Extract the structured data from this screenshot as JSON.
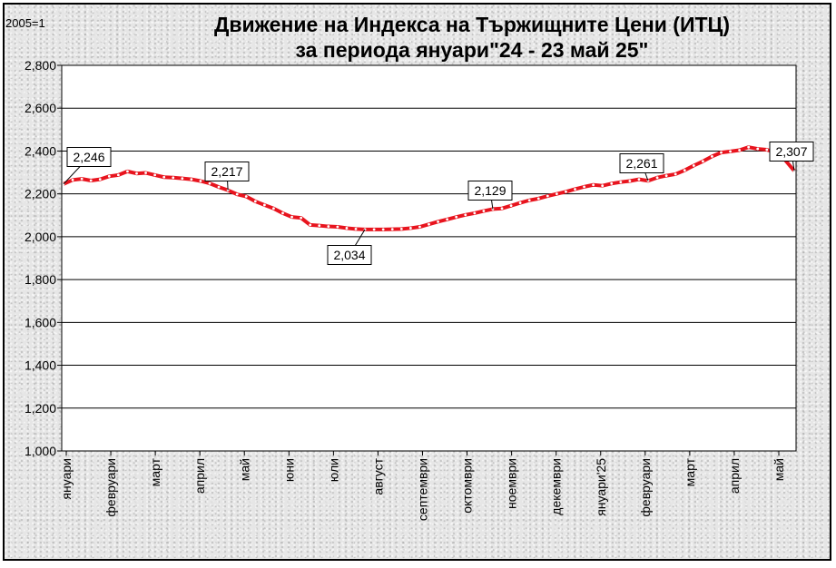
{
  "chart_data": {
    "type": "line",
    "title": "Движение на Индекса на Тържищните Цени (ИТЦ)",
    "subtitle": "за периода януари\"24 - 23 май 25\"",
    "unit_note": "2005=1",
    "xlabel": "",
    "ylabel": "",
    "ylim": [
      1.0,
      2.8
    ],
    "yticks": [
      "1,000",
      "1,200",
      "1,400",
      "1,600",
      "1,800",
      "2,000",
      "2,200",
      "2,400",
      "2,600",
      "2,800"
    ],
    "ytick_values": [
      1.0,
      1.2,
      1.4,
      1.6,
      1.8,
      2.0,
      2.2,
      2.4,
      2.6,
      2.8
    ],
    "x_month_labels": [
      "януари",
      "февруари",
      "март",
      "април",
      "май",
      "юни",
      "юли",
      "август",
      "септември",
      "октомври",
      "ноември",
      "декември",
      "януари'25",
      "февруари",
      "март",
      "април",
      "май"
    ],
    "series": [
      {
        "color": "#e8141e",
        "marker_color": "#ffffff",
        "values": [
          2.246,
          2.265,
          2.27,
          2.262,
          2.268,
          2.282,
          2.288,
          2.305,
          2.295,
          2.298,
          2.288,
          2.278,
          2.276,
          2.272,
          2.268,
          2.26,
          2.249,
          2.232,
          2.217,
          2.198,
          2.188,
          2.165,
          2.148,
          2.132,
          2.11,
          2.092,
          2.088,
          2.055,
          2.052,
          2.048,
          2.046,
          2.04,
          2.036,
          2.034,
          2.034,
          2.034,
          2.035,
          2.036,
          2.04,
          2.046,
          2.058,
          2.07,
          2.081,
          2.092,
          2.102,
          2.11,
          2.12,
          2.129,
          2.132,
          2.145,
          2.158,
          2.17,
          2.178,
          2.19,
          2.2,
          2.21,
          2.222,
          2.233,
          2.242,
          2.238,
          2.248,
          2.255,
          2.26,
          2.268,
          2.261,
          2.276,
          2.285,
          2.292,
          2.31,
          2.332,
          2.352,
          2.375,
          2.393,
          2.398,
          2.404,
          2.418,
          2.41,
          2.406,
          2.392,
          2.358,
          2.307
        ]
      }
    ],
    "annotations": [
      "2,246",
      "2,217",
      "2,034",
      "2,129",
      "2,261",
      "2,307"
    ],
    "grid": "horizontal",
    "legend": "none"
  }
}
